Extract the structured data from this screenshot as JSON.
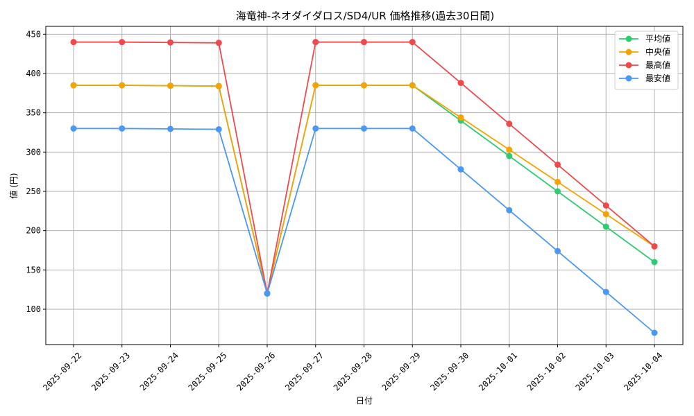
{
  "chart_data": {
    "type": "line",
    "title": "海竜神-ネオダイダロス/SD4/UR 価格推移(過去30日間)",
    "xlabel": "日付",
    "ylabel": "値 (円)",
    "ylim": [
      55,
      460
    ],
    "yticks": [
      100,
      150,
      200,
      250,
      300,
      350,
      400,
      450
    ],
    "grid": true,
    "legend_position": "top-right",
    "categories": [
      "2025-09-22",
      "2025-09-23",
      "2025-09-24",
      "2025-09-25",
      "2025-09-26",
      "2025-09-27",
      "2025-09-28",
      "2025-09-29",
      "2025-09-30",
      "2025-10-01",
      "2025-10-02",
      "2025-10-03",
      "2025-10-04"
    ],
    "series": [
      {
        "name": "平均値",
        "color": "#2ecc71",
        "values": [
          385,
          385,
          384.5,
          384,
          120,
          385,
          385,
          385,
          340,
          295,
          250,
          205,
          160
        ]
      },
      {
        "name": "中央値",
        "color": "#f5a300",
        "values": [
          385,
          385,
          384.5,
          384,
          120,
          385,
          385,
          385,
          344,
          303,
          262,
          221,
          180
        ]
      },
      {
        "name": "最高値",
        "color": "#f0494c",
        "values": [
          440,
          440,
          439.5,
          439,
          120,
          440,
          440,
          440,
          388,
          336,
          284,
          232,
          180
        ]
      },
      {
        "name": "最安値",
        "color": "#4a98f5",
        "values": [
          330,
          330,
          329.5,
          329,
          120,
          330,
          330,
          330,
          278,
          226,
          174,
          122,
          70
        ]
      }
    ]
  }
}
